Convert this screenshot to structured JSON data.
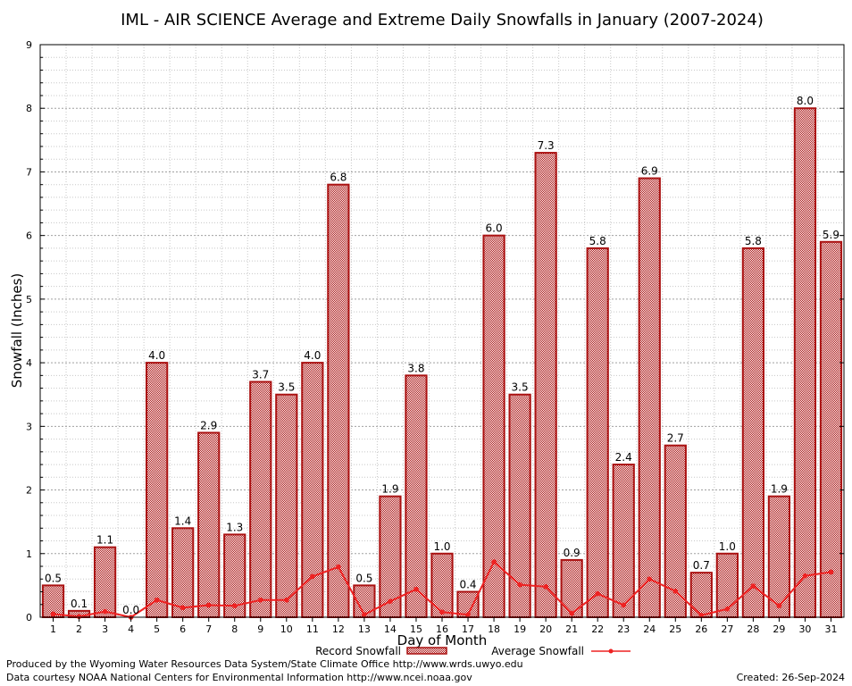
{
  "chart_data": {
    "type": "bar",
    "title": "IML - AIR SCIENCE Average and Extreme Daily Snowfalls in January (2007-2024)",
    "xlabel": "Day of Month",
    "ylabel": "Snowfall (Inches)",
    "ylim": [
      0,
      9
    ],
    "yticks": [
      "0",
      "1",
      "2",
      "3",
      "4",
      "5",
      "6",
      "7",
      "8",
      "9"
    ],
    "grid": true,
    "legend_position": "bottom",
    "categories": [
      "1",
      "2",
      "3",
      "4",
      "5",
      "6",
      "7",
      "8",
      "9",
      "10",
      "11",
      "12",
      "13",
      "14",
      "15",
      "16",
      "17",
      "18",
      "19",
      "20",
      "21",
      "22",
      "23",
      "24",
      "25",
      "26",
      "27",
      "28",
      "29",
      "30",
      "31"
    ],
    "series": [
      {
        "name": "Record Snowfall",
        "kind": "bar",
        "color": "#aa1111",
        "values": [
          0.5,
          0.1,
          1.1,
          0.0,
          4.0,
          1.4,
          2.9,
          1.3,
          3.7,
          3.5,
          4.0,
          6.8,
          0.5,
          1.9,
          3.8,
          1.0,
          0.4,
          6.0,
          3.5,
          7.3,
          0.9,
          5.8,
          2.4,
          6.9,
          2.7,
          0.7,
          1.0,
          5.8,
          1.9,
          8.0,
          5.9
        ],
        "data_labels": [
          "0.5",
          "0.1",
          "1.1",
          "0.0",
          "4.0",
          "1.4",
          "2.9",
          "1.3",
          "3.7",
          "3.5",
          "4.0",
          "6.8",
          "0.5",
          "1.9",
          "3.8",
          "1.0",
          "0.4",
          "6.0",
          "3.5",
          "7.3",
          "0.9",
          "5.8",
          "2.4",
          "6.9",
          "2.7",
          "0.7",
          "1.0",
          "5.8",
          "1.9",
          "8.0",
          "5.9"
        ]
      },
      {
        "name": "Average Snowfall",
        "kind": "line",
        "color": "#ee2222",
        "values": [
          0.05,
          0.01,
          0.09,
          0.0,
          0.27,
          0.15,
          0.19,
          0.18,
          0.27,
          0.27,
          0.64,
          0.79,
          0.04,
          0.25,
          0.44,
          0.08,
          0.04,
          0.87,
          0.51,
          0.48,
          0.06,
          0.37,
          0.19,
          0.6,
          0.41,
          0.03,
          0.13,
          0.49,
          0.18,
          0.65,
          0.71
        ]
      }
    ]
  },
  "footer": {
    "credit_line1": "Produced by the Wyoming Water Resources Data System/State Climate Office http://www.wrds.uwyo.edu",
    "credit_line2": "Data courtesy NOAA National Centers for Environmental Information http://www.ncei.noaa.gov",
    "created": "Created: 26-Sep-2024"
  }
}
